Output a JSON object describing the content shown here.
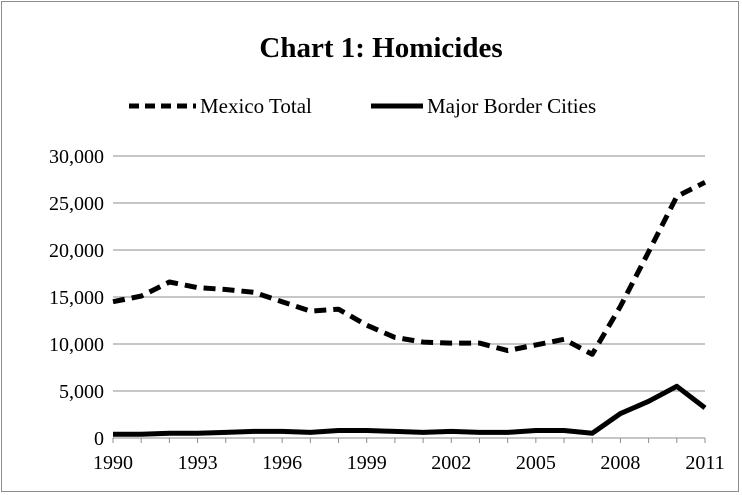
{
  "chart_data": {
    "type": "line",
    "title": "Chart 1: Homicides",
    "xlabel": "",
    "ylabel": "",
    "x": [
      1990,
      1991,
      1992,
      1993,
      1994,
      1995,
      1996,
      1997,
      1998,
      1999,
      2000,
      2001,
      2002,
      2003,
      2004,
      2005,
      2006,
      2007,
      2008,
      2009,
      2010,
      2011
    ],
    "x_ticks": [
      "1990",
      "1993",
      "1996",
      "1999",
      "2002",
      "2005",
      "2008",
      "2011"
    ],
    "y_ticks": [
      "0",
      "5,000",
      "10,000",
      "15,000",
      "20,000",
      "25,000",
      "30,000"
    ],
    "ylim": [
      0,
      30000
    ],
    "xlim": [
      1990,
      2011
    ],
    "grid": "horizontal",
    "legend_position": "top",
    "series": [
      {
        "name": "Mexico Total",
        "style": "dashed",
        "color": "#000000",
        "values": [
          14500,
          15100,
          16600,
          16000,
          15800,
          15500,
          14500,
          13500,
          13700,
          12000,
          10700,
          10200,
          10100,
          10100,
          9300,
          9900,
          10500,
          8900,
          14000,
          19800,
          25700,
          27200
        ]
      },
      {
        "name": "Major Border Cities",
        "style": "solid",
        "color": "#000000",
        "values": [
          400,
          400,
          500,
          500,
          600,
          700,
          700,
          600,
          800,
          800,
          700,
          600,
          700,
          600,
          600,
          800,
          800,
          500,
          2600,
          3900,
          5500,
          3200
        ]
      }
    ]
  }
}
